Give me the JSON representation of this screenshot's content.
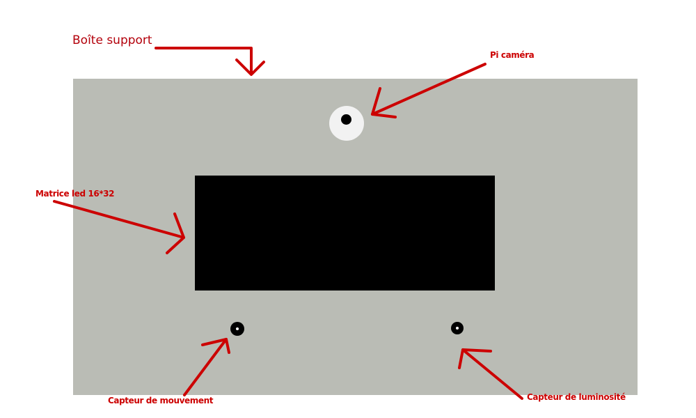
{
  "labels": {
    "support_box": "Boîte support",
    "pi_camera": "Pi caméra",
    "led_matrix": "Matrice led 16*32",
    "motion_sensor": "Capteur de mouvement",
    "light_sensor": "Capteur de luminosité"
  },
  "colors": {
    "annotation": "#cc0000",
    "box": "#babcb5",
    "matrix": "#000000",
    "camera_body": "#f2f2f2"
  }
}
